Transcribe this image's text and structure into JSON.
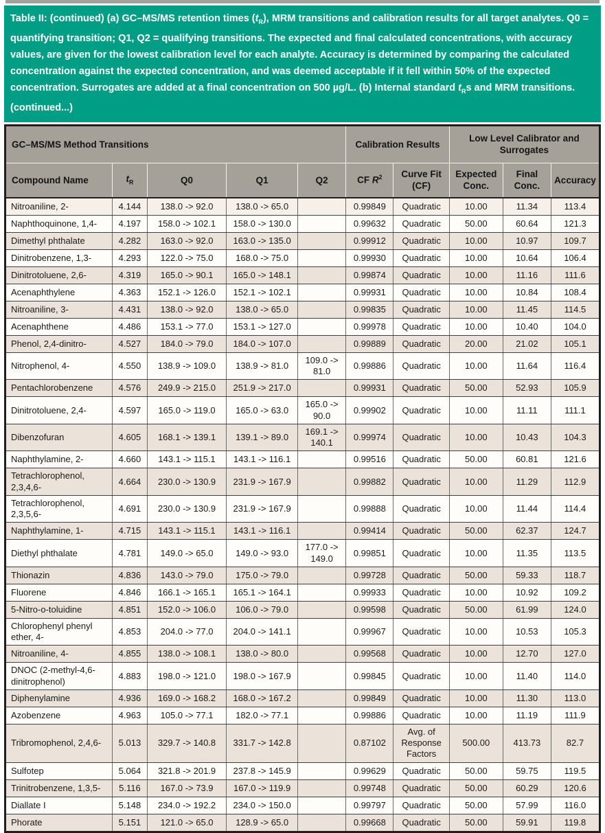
{
  "colors": {
    "caption_teal": "#009e85",
    "caption_text": "#ffffff",
    "header_gray": "#a5a098",
    "row_white": "#fefdf9",
    "row_cream": "#f6f0e8",
    "row_beige": "#ebe3d9",
    "border_dark": "#1f1f1f"
  },
  "caption": {
    "segments": [
      {
        "t": "text",
        "v": "Table II: (continued) (a) GC–MS/MS retention times ("
      },
      {
        "t": "i",
        "v": "t"
      },
      {
        "t": "sub",
        "v": "R"
      },
      {
        "t": "text",
        "v": "), MRM transitions and calibration results for all target analytes. Q0 = quantifying transition; Q1, Q2 = qualifying transitions. The expected and final calculated concentrations, with accuracy values, are given for the lowest calibration level for each analyte. Accuracy is determined by comparing the calculated concentration against the expected concentration, and was deemed acceptable if it fell within 50% of the expected concentration. Surrogates are added at a final concentration on 500 µg/L. (b) Internal standard "
      },
      {
        "t": "i",
        "v": "t"
      },
      {
        "t": "sub",
        "v": "R"
      },
      {
        "t": "text",
        "v": "s and MRM transitions. (continued...)"
      }
    ]
  },
  "table": {
    "group_headers": [
      {
        "label": "GC–MS/MS Method Transitions"
      },
      {
        "label": "Calibration Results"
      },
      {
        "label": "Low Level Calibrator and Surrogates"
      }
    ],
    "columns": {
      "compound": "Compound Name",
      "tr_rich": [
        {
          "t": "i",
          "v": "t"
        },
        {
          "t": "sub",
          "v": "R"
        }
      ],
      "q0": "Q0",
      "q1": "Q1",
      "q2": "Q2",
      "cfr2_rich": [
        {
          "t": "text",
          "v": "CF "
        },
        {
          "t": "i",
          "v": "R"
        },
        {
          "t": "sup",
          "v": "2"
        }
      ],
      "curve": "Curve Fit (CF)",
      "expected": "Expected Conc.",
      "final": "Final Conc.",
      "accuracy": "Accuracy"
    },
    "row_cell_keys": [
      "name",
      "tr",
      "q0",
      "q1",
      "q2",
      "cf_r2",
      "curve_fit",
      "expected",
      "final",
      "accuracy"
    ],
    "rows": [
      {
        "name": "Nitroaniline, 2-",
        "tr": "4.144",
        "q0": "138.0 -> 92.0",
        "q1": "138.0 -> 65.0",
        "q2": "",
        "cf_r2": "0.99849",
        "curve_fit": "Quadratic",
        "expected": "10.00",
        "final": "11.34",
        "accuracy": "113.4",
        "shade": "cream"
      },
      {
        "name": "Naphthoquinone, 1,4-",
        "tr": "4.197",
        "q0": "158.0 -> 102.1",
        "q1": "158.0 -> 130.0",
        "q2": "",
        "cf_r2": "0.99632",
        "curve_fit": "Quadratic",
        "expected": "50.00",
        "final": "60.64",
        "accuracy": "121.3",
        "shade": "white"
      },
      {
        "name": "Dimethyl phthalate",
        "tr": "4.282",
        "q0": "163.0 -> 92.0",
        "q1": "163.0 -> 135.0",
        "q2": "",
        "cf_r2": "0.99912",
        "curve_fit": "Quadratic",
        "expected": "10.00",
        "final": "10.97",
        "accuracy": "109.7",
        "shade": "beige"
      },
      {
        "name": "Dinitrobenzene, 1,3-",
        "tr": "4.293",
        "q0": "122.0 -> 75.0",
        "q1": "168.0 -> 75.0",
        "q2": "",
        "cf_r2": "0.99930",
        "curve_fit": "Quadratic",
        "expected": "10.00",
        "final": "10.64",
        "accuracy": "106.4",
        "shade": "white"
      },
      {
        "name": "Dinitrotoluene, 2,6-",
        "tr": "4.319",
        "q0": "165.0 -> 90.1",
        "q1": "165.0 -> 148.1",
        "q2": "",
        "cf_r2": "0.99874",
        "curve_fit": "Quadratic",
        "expected": "10.00",
        "final": "11.16",
        "accuracy": "111.6",
        "shade": "beige"
      },
      {
        "name": "Acenaphthylene",
        "tr": "4.363",
        "q0": "152.1 -> 126.0",
        "q1": "152.1 -> 102.1",
        "q2": "",
        "cf_r2": "0.99931",
        "curve_fit": "Quadratic",
        "expected": "10.00",
        "final": "10.84",
        "accuracy": "108.4",
        "shade": "white"
      },
      {
        "name": "Nitroaniline, 3-",
        "tr": "4.431",
        "q0": "138.0 -> 92.0",
        "q1": "138.0 -> 65.0",
        "q2": "",
        "cf_r2": "0.99835",
        "curve_fit": "Quadratic",
        "expected": "10.00",
        "final": "11.45",
        "accuracy": "114.5",
        "shade": "beige"
      },
      {
        "name": "Acenaphthene",
        "tr": "4.486",
        "q0": "153.1 -> 77.0",
        "q1": "153.1 -> 127.0",
        "q2": "",
        "cf_r2": "0.99978",
        "curve_fit": "Quadratic",
        "expected": "10.00",
        "final": "10.40",
        "accuracy": "104.0",
        "shade": "white"
      },
      {
        "name": "Phenol, 2,4-dinitro-",
        "tr": "4.527",
        "q0": "184.0 -> 79.0",
        "q1": "184.0 -> 107.0",
        "q2": "",
        "cf_r2": "0.99889",
        "curve_fit": "Quadratic",
        "expected": "20.00",
        "final": "21.02",
        "accuracy": "105.1",
        "shade": "beige"
      },
      {
        "name": "Nitrophenol, 4-",
        "tr": "4.550",
        "q0": "138.9 -> 109.0",
        "q1": "138.9 -> 81.0",
        "q2": "109.0 -> 81.0",
        "cf_r2": "0.99886",
        "curve_fit": "Quadratic",
        "expected": "10.00",
        "final": "11.64",
        "accuracy": "116.4",
        "shade": "white"
      },
      {
        "name": "Pentachlorobenzene",
        "tr": "4.576",
        "q0": "249.9 -> 215.0",
        "q1": "251.9 -> 217.0",
        "q2": "",
        "cf_r2": "0.99931",
        "curve_fit": "Quadratic",
        "expected": "50.00",
        "final": "52.93",
        "accuracy": "105.9",
        "shade": "beige"
      },
      {
        "name": "Dinitrotoluene, 2,4-",
        "tr": "4.597",
        "q0": "165.0 -> 119.0",
        "q1": "165.0 -> 63.0",
        "q2": "165.0 -> 90.0",
        "cf_r2": "0.99902",
        "curve_fit": "Quadratic",
        "expected": "10.00",
        "final": "11.11",
        "accuracy": "111.1",
        "shade": "white"
      },
      {
        "name": "Dibenzofuran",
        "tr": "4.605",
        "q0": "168.1 -> 139.1",
        "q1": "139.1 -> 89.0",
        "q2": "169.1 -> 140.1",
        "cf_r2": "0.99974",
        "curve_fit": "Quadratic",
        "expected": "10.00",
        "final": "10.43",
        "accuracy": "104.3",
        "shade": "beige"
      },
      {
        "name": "Naphthylamine, 2-",
        "tr": "4.660",
        "q0": "143.1 -> 115.1",
        "q1": "143.1 -> 116.1",
        "q2": "",
        "cf_r2": "0.99516",
        "curve_fit": "Quadratic",
        "expected": "50.00",
        "final": "60.81",
        "accuracy": "121.6",
        "shade": "white"
      },
      {
        "name": "Tetrachlorophenol, 2,3,4,6-",
        "tr": "4.664",
        "q0": "230.0 -> 130.9",
        "q1": "231.9 -> 167.9",
        "q2": "",
        "cf_r2": "0.99882",
        "curve_fit": "Quadratic",
        "expected": "10.00",
        "final": "11.29",
        "accuracy": "112.9",
        "shade": "beige"
      },
      {
        "name": "Tetrachlorophenol, 2,3,5,6-",
        "tr": "4.691",
        "q0": "230.0 -> 130.9",
        "q1": "231.9 -> 167.9",
        "q2": "",
        "cf_r2": "0.99888",
        "curve_fit": "Quadratic",
        "expected": "10.00",
        "final": "11.44",
        "accuracy": "114.4",
        "shade": "white"
      },
      {
        "name": "Naphthylamine, 1-",
        "tr": "4.715",
        "q0": "143.1 -> 115.1",
        "q1": "143.1 -> 116.1",
        "q2": "",
        "cf_r2": "0.99414",
        "curve_fit": "Quadratic",
        "expected": "50.00",
        "final": "62.37",
        "accuracy": "124.7",
        "shade": "beige"
      },
      {
        "name": "Diethyl phthalate",
        "tr": "4.781",
        "q0": "149.0 -> 65.0",
        "q1": "149.0 -> 93.0",
        "q2": "177.0 -> 149.0",
        "cf_r2": "0.99851",
        "curve_fit": "Quadratic",
        "expected": "10.00",
        "final": "11.35",
        "accuracy": "113.5",
        "shade": "white"
      },
      {
        "name": "Thionazin",
        "tr": "4.836",
        "q0": "143.0 -> 79.0",
        "q1": "175.0 -> 79.0",
        "q2": "",
        "cf_r2": "0.99728",
        "curve_fit": "Quadratic",
        "expected": "50.00",
        "final": "59.33",
        "accuracy": "118.7",
        "shade": "beige"
      },
      {
        "name": "Fluorene",
        "tr": "4.846",
        "q0": "166.1 -> 165.1",
        "q1": "165.1 -> 164.1",
        "q2": "",
        "cf_r2": "0.99933",
        "curve_fit": "Quadratic",
        "expected": "10.00",
        "final": "10.92",
        "accuracy": "109.2",
        "shade": "white"
      },
      {
        "name": "5-Nitro-o-toluidine",
        "tr": "4.851",
        "q0": "152.0 -> 106.0",
        "q1": "106.0 -> 79.0",
        "q2": "",
        "cf_r2": "0.99598",
        "curve_fit": "Quadratic",
        "expected": "50.00",
        "final": "61.99",
        "accuracy": "124.0",
        "shade": "beige"
      },
      {
        "name": "Chlorophenyl phenyl ether, 4-",
        "tr": "4.853",
        "q0": "204.0 -> 77.0",
        "q1": "204.0 -> 141.1",
        "q2": "",
        "cf_r2": "0.99967",
        "curve_fit": "Quadratic",
        "expected": "10.00",
        "final": "10.53",
        "accuracy": "105.3",
        "shade": "white"
      },
      {
        "name": "Nitroaniline, 4-",
        "tr": "4.855",
        "q0": "138.0 -> 108.1",
        "q1": "138.0 -> 80.0",
        "q2": "",
        "cf_r2": "0.99568",
        "curve_fit": "Quadratic",
        "expected": "10.00",
        "final": "12.70",
        "accuracy": "127.0",
        "shade": "beige"
      },
      {
        "name": "DNOC (2-methyl-4,6-dinitrophenol)",
        "tr": "4.883",
        "q0": "198.0 -> 121.0",
        "q1": "198.0 -> 167.9",
        "q2": "",
        "cf_r2": "0.99845",
        "curve_fit": "Quadratic",
        "expected": "10.00",
        "final": "11.40",
        "accuracy": "114.0",
        "shade": "white"
      },
      {
        "name": "Diphenylamine",
        "tr": "4.936",
        "q0": "169.0 -> 168.2",
        "q1": "168.0 -> 167.2",
        "q2": "",
        "cf_r2": "0.99849",
        "curve_fit": "Quadratic",
        "expected": "10.00",
        "final": "11.30",
        "accuracy": "113.0",
        "shade": "beige"
      },
      {
        "name": "Azobenzene",
        "tr": "4.963",
        "q0": "105.0 -> 77.1",
        "q1": "182.0 -> 77.1",
        "q2": "",
        "cf_r2": "0.99886",
        "curve_fit": "Quadratic",
        "expected": "10.00",
        "final": "11.19",
        "accuracy": "111.9",
        "shade": "white"
      },
      {
        "name": "Tribromophenol, 2,4,6-",
        "tr": "5.013",
        "q0": "329.7 -> 140.8",
        "q1": "331.7 -> 142.8",
        "q2": "",
        "cf_r2": "0.87102",
        "curve_fit": "Avg. of Response Factors",
        "expected": "500.00",
        "final": "413.73",
        "accuracy": "82.7",
        "shade": "beige"
      },
      {
        "name": "Sulfotep",
        "tr": "5.064",
        "q0": "321.8 -> 201.9",
        "q1": "237.8 -> 145.9",
        "q2": "",
        "cf_r2": "0.99629",
        "curve_fit": "Quadratic",
        "expected": "50.00",
        "final": "59.75",
        "accuracy": "119.5",
        "shade": "white"
      },
      {
        "name": "Trinitrobenzene, 1,3,5-",
        "tr": "5.116",
        "q0": "167.0 -> 73.9",
        "q1": "167.0 -> 119.9",
        "q2": "",
        "cf_r2": "0.99748",
        "curve_fit": "Quadratic",
        "expected": "50.00",
        "final": "60.29",
        "accuracy": "120.6",
        "shade": "beige"
      },
      {
        "name": "Diallate I",
        "tr": "5.148",
        "q0": "234.0 -> 192.2",
        "q1": "234.0 -> 150.0",
        "q2": "",
        "cf_r2": "0.99797",
        "curve_fit": "Quadratic",
        "expected": "50.00",
        "final": "57.99",
        "accuracy": "116.0",
        "shade": "white"
      },
      {
        "name": "Phorate",
        "tr": "5.151",
        "q0": "121.0 -> 65.0",
        "q1": "128.9 -> 65.0",
        "q2": "",
        "cf_r2": "0.99668",
        "curve_fit": "Quadratic",
        "expected": "50.00",
        "final": "59.91",
        "accuracy": "119.8",
        "shade": "beige"
      }
    ]
  }
}
